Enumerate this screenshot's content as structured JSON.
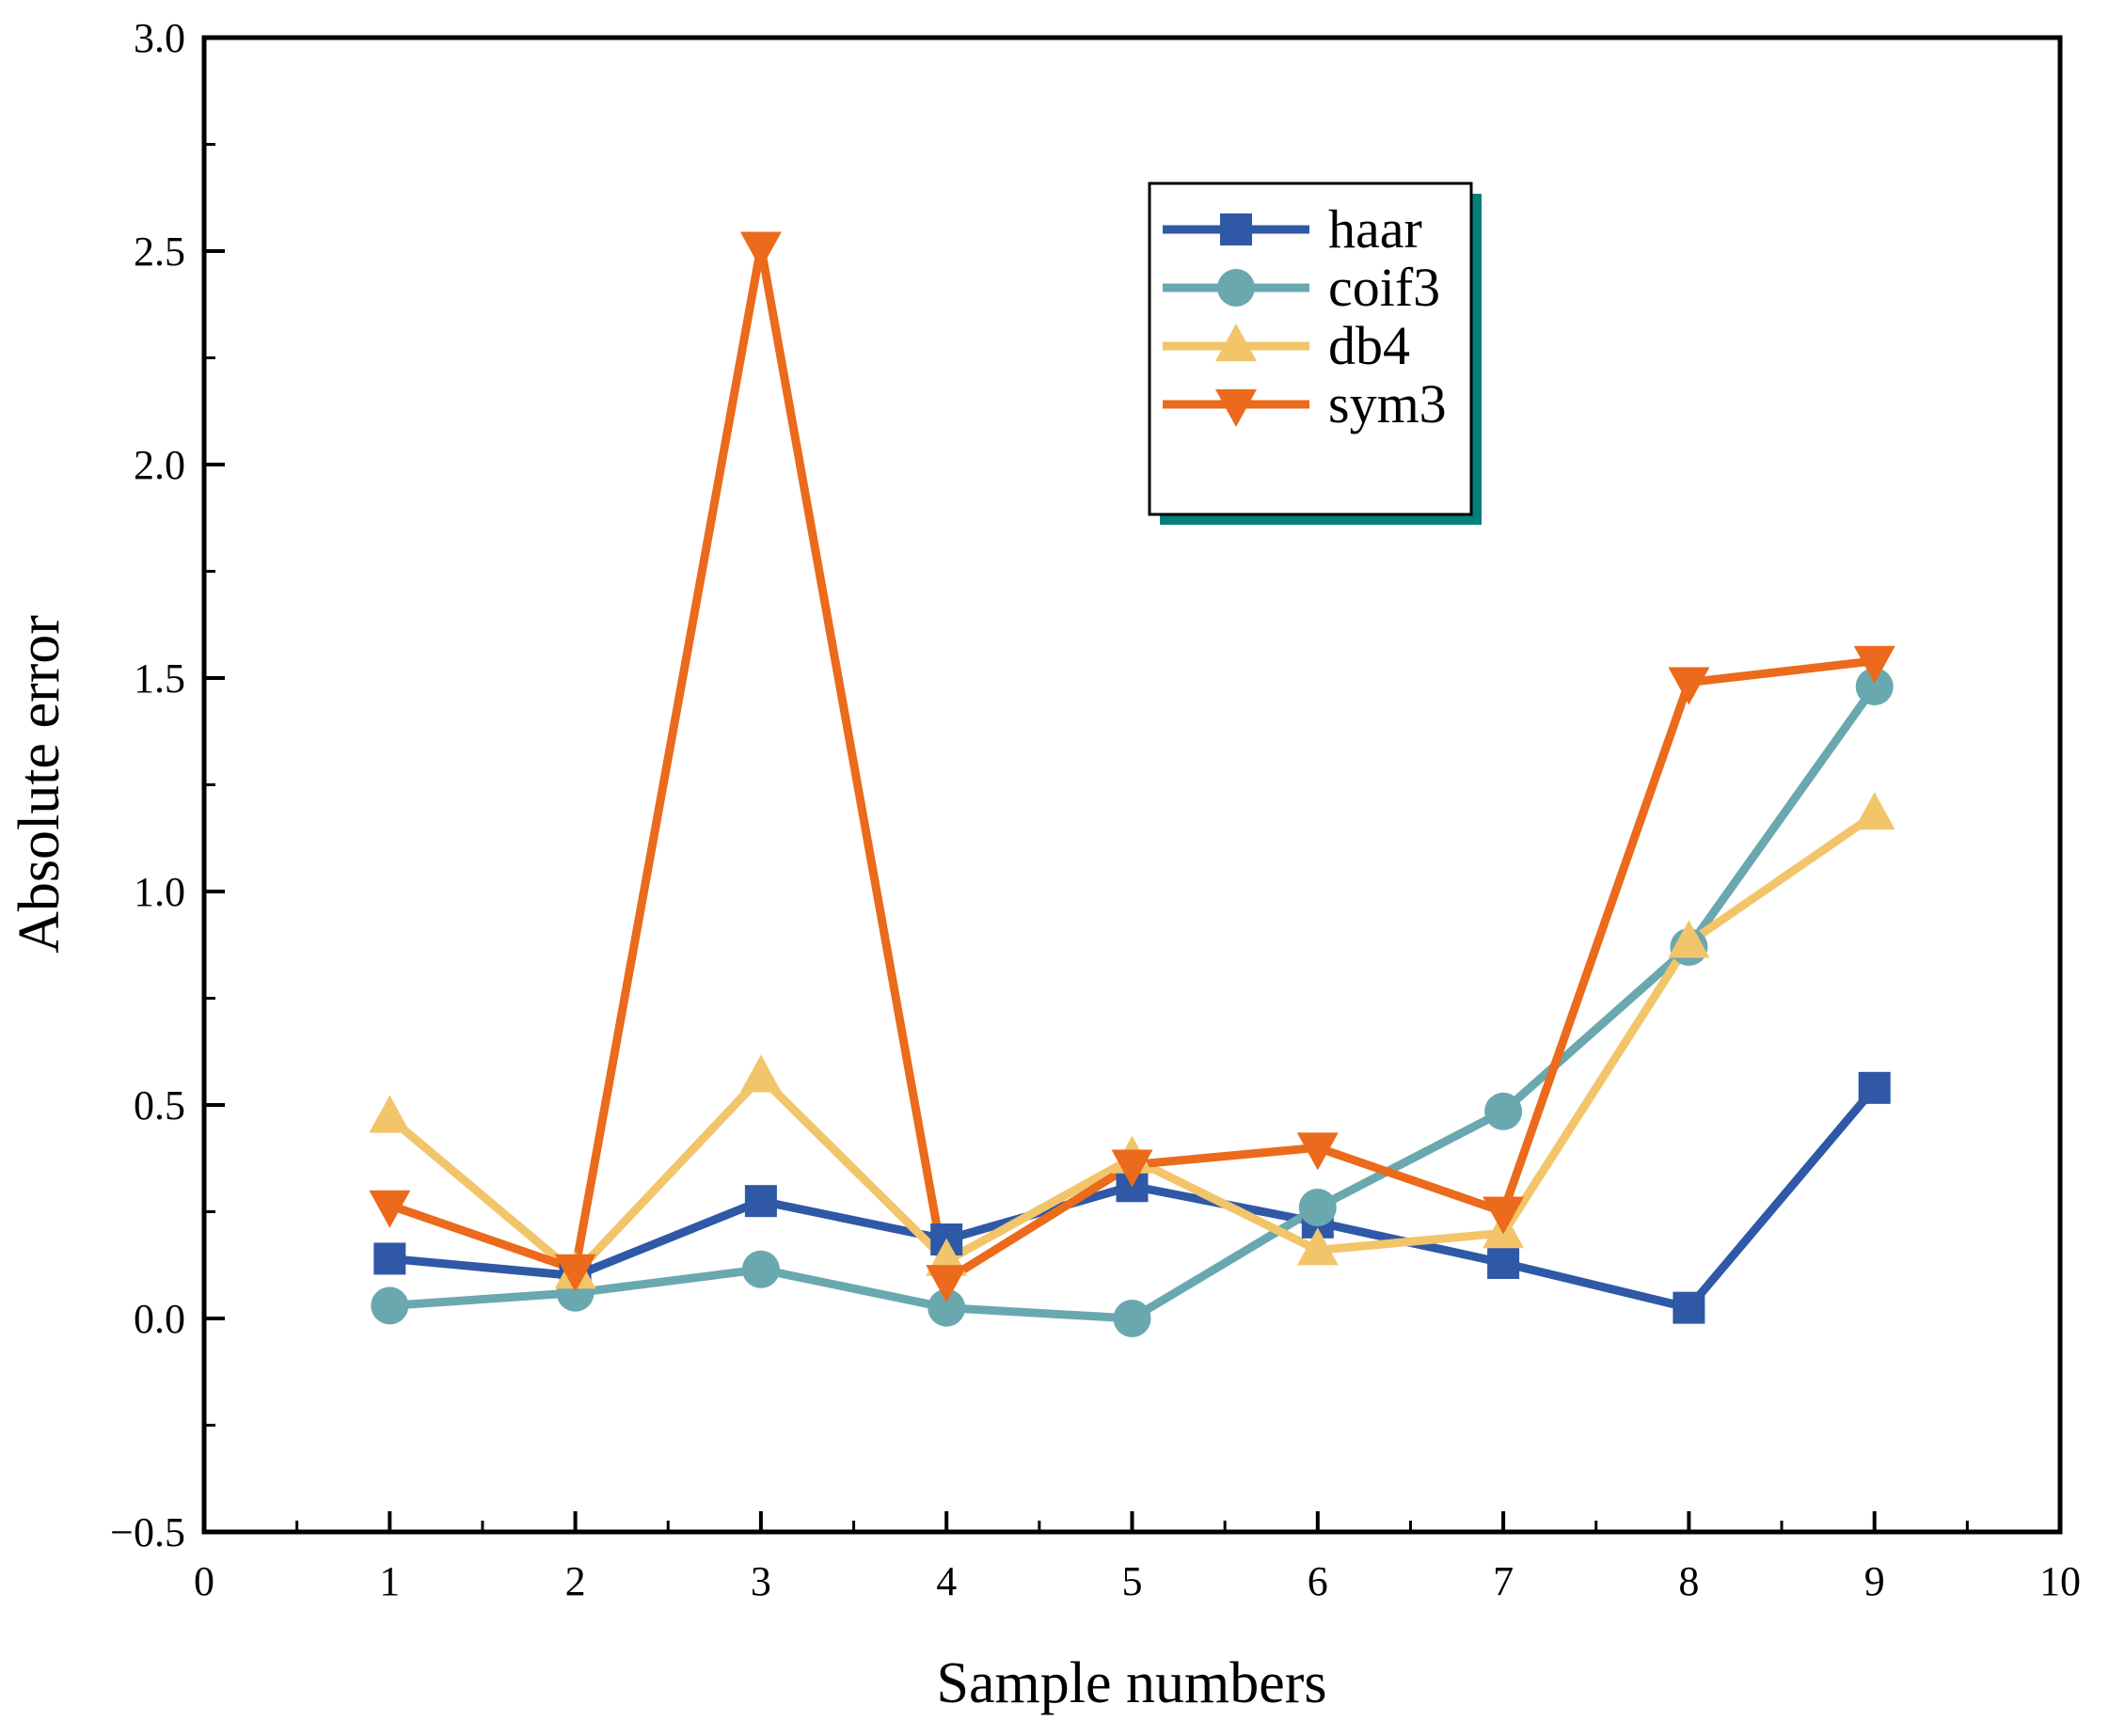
{
  "chart_data": {
    "type": "line",
    "title": "",
    "xlabel": "Sample numbers",
    "ylabel": "Absolute error",
    "xlim": [
      0,
      10
    ],
    "ylim": [
      -0.5,
      3.0
    ],
    "x_ticks": [
      0,
      1,
      2,
      3,
      4,
      5,
      6,
      7,
      8,
      9,
      10
    ],
    "x_tick_labels": [
      "0",
      "1",
      "2",
      "3",
      "4",
      "5",
      "6",
      "7",
      "8",
      "9",
      "10"
    ],
    "y_ticks": [
      -0.5,
      0.0,
      0.5,
      1.0,
      1.5,
      2.0,
      2.5,
      3.0
    ],
    "y_tick_labels": [
      "−0.5",
      "0.0",
      "0.5",
      "1.0",
      "1.5",
      "2.0",
      "2.5",
      "3.0"
    ],
    "x": [
      1,
      2,
      3,
      4,
      5,
      6,
      7,
      8,
      9
    ],
    "legend_position": "top-right",
    "series": [
      {
        "name": "haar",
        "marker": "square",
        "color": "#2f58a6",
        "values": [
          0.14,
          0.1,
          0.275,
          0.185,
          0.31,
          0.225,
          0.13,
          0.025,
          0.54
        ]
      },
      {
        "name": "coif3",
        "marker": "circle",
        "color": "#6aa8b0",
        "values": [
          0.03,
          0.06,
          0.115,
          0.025,
          0.0,
          0.26,
          0.485,
          0.87,
          1.48
        ]
      },
      {
        "name": "db4",
        "marker": "triangle-up",
        "color": "#f2c56b",
        "values": [
          0.47,
          0.105,
          0.565,
          0.135,
          0.375,
          0.16,
          0.2,
          0.88,
          1.18
        ]
      },
      {
        "name": "sym3",
        "marker": "triangle-down",
        "color": "#eb6a1b",
        "values": [
          0.265,
          0.115,
          2.51,
          0.09,
          0.36,
          0.4,
          0.25,
          1.49,
          1.54
        ]
      }
    ]
  }
}
